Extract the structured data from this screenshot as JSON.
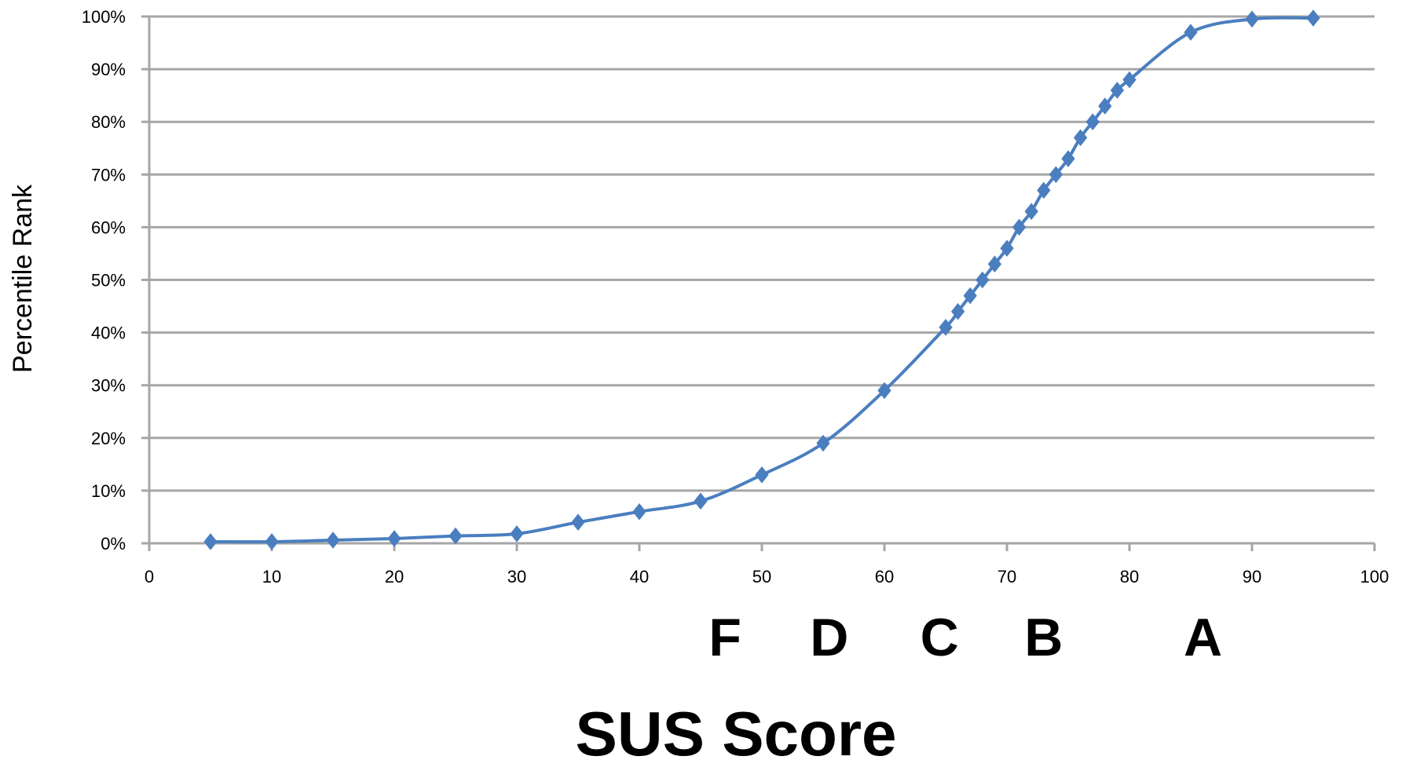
{
  "chart_data": {
    "type": "line",
    "title": "",
    "xlabel": "SUS Score",
    "ylabel": "Percentile Rank",
    "xlim": [
      0,
      100
    ],
    "ylim": [
      0,
      100
    ],
    "x_ticks": [
      0,
      10,
      20,
      30,
      40,
      50,
      60,
      70,
      80,
      90,
      100
    ],
    "x_tick_labels": [
      "0",
      "10",
      "20",
      "30",
      "40",
      "50",
      "60",
      "70",
      "80",
      "90",
      "100"
    ],
    "y_ticks": [
      0,
      10,
      20,
      30,
      40,
      50,
      60,
      70,
      80,
      90,
      100
    ],
    "y_tick_labels": [
      "0%",
      "10%",
      "20%",
      "30%",
      "40%",
      "50%",
      "60%",
      "70%",
      "80%",
      "90%",
      "100%"
    ],
    "grid": "horizontal",
    "legend": "none",
    "series": [
      {
        "color": "#4a7ebf",
        "marker": "diamond",
        "smooth": true,
        "x": [
          5,
          10,
          15,
          20,
          25,
          30,
          35,
          40,
          45,
          50,
          55,
          60,
          65,
          66,
          67,
          68,
          69,
          70,
          71,
          72,
          73,
          74,
          75,
          76,
          77,
          78,
          79,
          80,
          85,
          90,
          95
        ],
        "y": [
          0.3,
          0.3,
          0.6,
          0.9,
          1.4,
          1.8,
          4,
          6,
          8,
          13,
          19,
          29,
          41,
          44,
          47,
          50,
          53,
          56,
          60,
          63,
          67,
          70,
          73,
          77,
          80,
          83,
          86,
          88,
          97,
          99.5,
          99.7
        ]
      }
    ],
    "annotations": [
      {
        "text": "F",
        "x": 47
      },
      {
        "text": "D",
        "x": 55.5
      },
      {
        "text": "C",
        "x": 64.5
      },
      {
        "text": "B",
        "x": 73
      },
      {
        "text": "A",
        "x": 86
      }
    ]
  }
}
